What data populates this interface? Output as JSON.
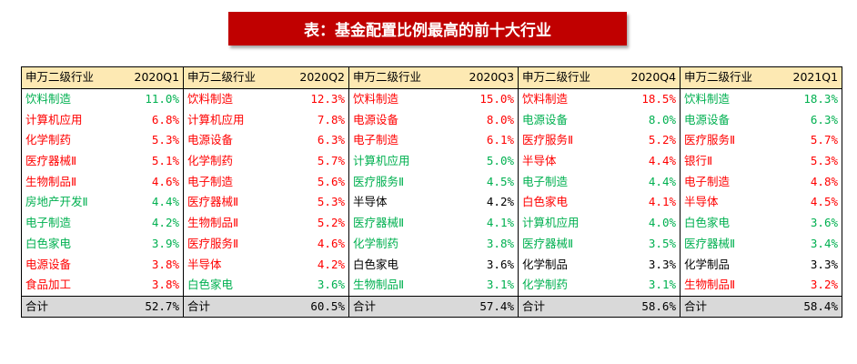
{
  "title": "表：基金配置比例最高的前十大行业",
  "colors": {
    "red": "#ff0000",
    "green": "#00b050",
    "black": "#000000",
    "header_bg": "#fde9b3",
    "total_bg": "#d9d9d9",
    "title_bg": "#c00000"
  },
  "quarters": [
    {
      "name_header": "申万二级行业",
      "period": "2020Q1",
      "rows": [
        {
          "industry": "饮料制造",
          "pct": "11.0%",
          "color": "green"
        },
        {
          "industry": "计算机应用",
          "pct": "6.8%",
          "color": "red"
        },
        {
          "industry": "化学制药",
          "pct": "5.3%",
          "color": "red"
        },
        {
          "industry": "医疗器械Ⅱ",
          "pct": "5.1%",
          "color": "red"
        },
        {
          "industry": "生物制品Ⅱ",
          "pct": "4.6%",
          "color": "red"
        },
        {
          "industry": "房地产开发Ⅱ",
          "pct": "4.4%",
          "color": "green"
        },
        {
          "industry": "电子制造",
          "pct": "4.2%",
          "color": "green"
        },
        {
          "industry": "白色家电",
          "pct": "3.9%",
          "color": "green"
        },
        {
          "industry": "电源设备",
          "pct": "3.8%",
          "color": "red"
        },
        {
          "industry": "食品加工",
          "pct": "3.8%",
          "color": "red"
        }
      ],
      "total_label": "合计",
      "total": "52.7%"
    },
    {
      "name_header": "申万二级行业",
      "period": "2020Q2",
      "rows": [
        {
          "industry": "饮料制造",
          "pct": "12.3%",
          "color": "red"
        },
        {
          "industry": "计算机应用",
          "pct": "7.8%",
          "color": "red"
        },
        {
          "industry": "电源设备",
          "pct": "6.3%",
          "color": "red"
        },
        {
          "industry": "化学制药",
          "pct": "5.7%",
          "color": "red"
        },
        {
          "industry": "电子制造",
          "pct": "5.6%",
          "color": "red"
        },
        {
          "industry": "医疗器械Ⅱ",
          "pct": "5.3%",
          "color": "red"
        },
        {
          "industry": "生物制品Ⅱ",
          "pct": "5.2%",
          "color": "red"
        },
        {
          "industry": "医疗服务Ⅱ",
          "pct": "4.6%",
          "color": "red"
        },
        {
          "industry": "半导体",
          "pct": "4.2%",
          "color": "red"
        },
        {
          "industry": "白色家电",
          "pct": "3.6%",
          "color": "green"
        }
      ],
      "total_label": "合计",
      "total": "60.5%"
    },
    {
      "name_header": "申万二级行业",
      "period": "2020Q3",
      "rows": [
        {
          "industry": "饮料制造",
          "pct": "15.0%",
          "color": "red"
        },
        {
          "industry": "电源设备",
          "pct": "8.0%",
          "color": "red"
        },
        {
          "industry": "电子制造",
          "pct": "6.1%",
          "color": "red"
        },
        {
          "industry": "计算机应用",
          "pct": "5.0%",
          "color": "green"
        },
        {
          "industry": "医疗服务Ⅱ",
          "pct": "4.5%",
          "color": "green"
        },
        {
          "industry": "半导体",
          "pct": "4.2%",
          "color": "black"
        },
        {
          "industry": "医疗器械Ⅱ",
          "pct": "4.1%",
          "color": "green"
        },
        {
          "industry": "化学制药",
          "pct": "3.8%",
          "color": "green"
        },
        {
          "industry": "白色家电",
          "pct": "3.6%",
          "color": "black"
        },
        {
          "industry": "生物制品Ⅱ",
          "pct": "3.1%",
          "color": "green"
        }
      ],
      "total_label": "合计",
      "total": "57.4%"
    },
    {
      "name_header": "申万二级行业",
      "period": "2020Q4",
      "rows": [
        {
          "industry": "饮料制造",
          "pct": "18.5%",
          "color": "red"
        },
        {
          "industry": "电源设备",
          "pct": "8.0%",
          "color": "green"
        },
        {
          "industry": "医疗服务Ⅱ",
          "pct": "5.2%",
          "color": "red"
        },
        {
          "industry": "半导体",
          "pct": "4.4%",
          "color": "red"
        },
        {
          "industry": "电子制造",
          "pct": "4.4%",
          "color": "green"
        },
        {
          "industry": "白色家电",
          "pct": "4.1%",
          "color": "red"
        },
        {
          "industry": "计算机应用",
          "pct": "4.0%",
          "color": "green"
        },
        {
          "industry": "医疗器械Ⅱ",
          "pct": "3.5%",
          "color": "green"
        },
        {
          "industry": "化学制品",
          "pct": "3.3%",
          "color": "black"
        },
        {
          "industry": "化学制药",
          "pct": "3.1%",
          "color": "green"
        }
      ],
      "total_label": "合计",
      "total": "58.6%"
    },
    {
      "name_header": "申万二级行业",
      "period": "2021Q1",
      "rows": [
        {
          "industry": "饮料制造",
          "pct": "18.3%",
          "color": "green"
        },
        {
          "industry": "电源设备",
          "pct": "6.3%",
          "color": "green"
        },
        {
          "industry": "医疗服务Ⅱ",
          "pct": "5.7%",
          "color": "red"
        },
        {
          "industry": "银行Ⅱ",
          "pct": "5.3%",
          "color": "red"
        },
        {
          "industry": "电子制造",
          "pct": "4.8%",
          "color": "red"
        },
        {
          "industry": "半导体",
          "pct": "4.5%",
          "color": "red"
        },
        {
          "industry": "白色家电",
          "pct": "3.6%",
          "color": "green"
        },
        {
          "industry": "医疗器械Ⅱ",
          "pct": "3.4%",
          "color": "green"
        },
        {
          "industry": "化学制品",
          "pct": "3.3%",
          "color": "black"
        },
        {
          "industry": "生物制品Ⅱ",
          "pct": "3.2%",
          "color": "red"
        }
      ],
      "total_label": "合计",
      "total": "58.4%"
    }
  ]
}
